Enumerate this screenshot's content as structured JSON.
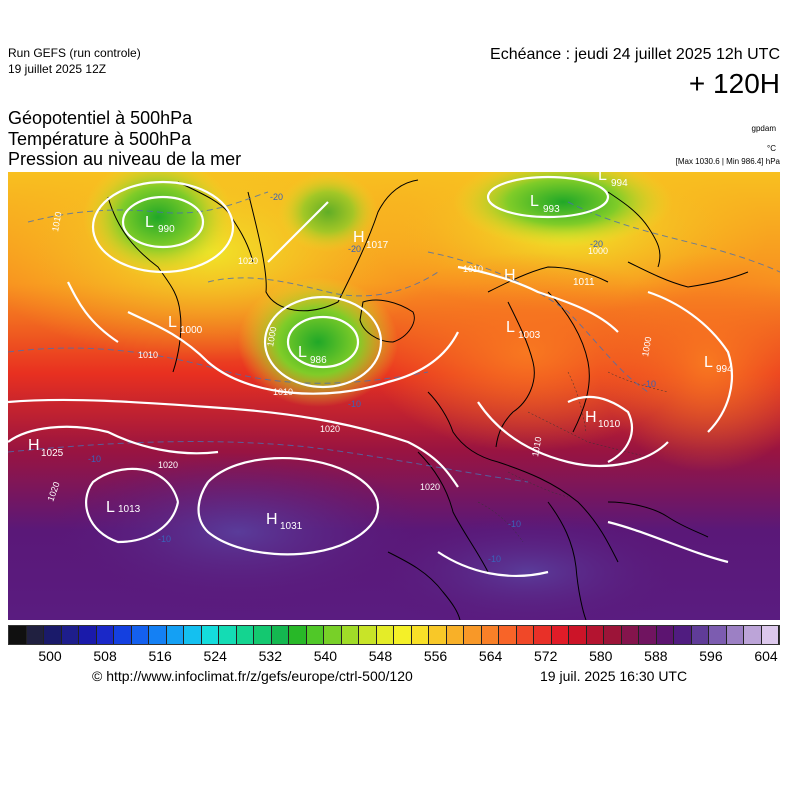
{
  "header": {
    "run_title": "Run GEFS (run controle)",
    "run_date": "19 juillet 2025 12Z",
    "valid_time": "Echéance : jeudi 24 juillet 2025 12h UTC",
    "lead_time": "+ 120H"
  },
  "variables": {
    "v1": "Géopotentiel à 500hPa",
    "v2": "Température à 500hPa",
    "v3": "Pression au niveau de la mer"
  },
  "units": {
    "geopotential": "gpdam",
    "temperature": "°C",
    "max_min": "[Max 1030.6 | Min 986.4] hPa"
  },
  "pressure_centers": [
    {
      "type": "L",
      "value": "990"
    },
    {
      "type": "H",
      "value": "1017"
    },
    {
      "type": "L",
      "value": "993"
    },
    {
      "type": "L",
      "value": "994"
    },
    {
      "type": "L",
      "value": "1000"
    },
    {
      "type": "L",
      "value": "986"
    },
    {
      "type": "H",
      "value": "1011"
    },
    {
      "type": "L",
      "value": "1003"
    },
    {
      "type": "L",
      "value": "994"
    },
    {
      "type": "H",
      "value": "1010"
    },
    {
      "type": "H",
      "value": "1025"
    },
    {
      "type": "L",
      "value": "1013"
    },
    {
      "type": "H",
      "value": "1031"
    }
  ],
  "isobar_labels": [
    "1010",
    "1000",
    "1010",
    "1010",
    "1010",
    "1000",
    "1020",
    "1020",
    "1020",
    "1020",
    "1010",
    "1020",
    "1000"
  ],
  "temp_labels": [
    "-20",
    "-20",
    "-20",
    "-10",
    "-10",
    "-10",
    "-10",
    "-10",
    "-10"
  ],
  "colorbar": {
    "colors": [
      "#101010",
      "#202040",
      "#1a1a6a",
      "#1e1e8c",
      "#1a1aaa",
      "#1a28c8",
      "#1440e0",
      "#1460ee",
      "#1480f4",
      "#14a0f4",
      "#14c0f0",
      "#14dcdc",
      "#14dcb4",
      "#14d490",
      "#14c870",
      "#14b850",
      "#28b828",
      "#50c828",
      "#78d028",
      "#a0dc28",
      "#c8e428",
      "#e4ec28",
      "#f4f028",
      "#f8e028",
      "#f8c828",
      "#f8b028",
      "#f89828",
      "#f88028",
      "#f86428",
      "#f04828",
      "#e83028",
      "#e01c28",
      "#cc1428",
      "#b41430",
      "#9c1438",
      "#84144c",
      "#701460",
      "#5c1470",
      "#501c80",
      "#603c98",
      "#7c5cb0",
      "#9c80c4",
      "#bca4d8",
      "#dcc8ec"
    ],
    "labels": [
      "500",
      "508",
      "516",
      "524",
      "532",
      "540",
      "548",
      "556",
      "564",
      "572",
      "580",
      "588",
      "596",
      "604"
    ]
  },
  "footer": {
    "copyright": "© http://www.infoclimat.fr/z/gefs/europe/ctrl-500/120",
    "generated": "19 juil. 2025 16:30 UTC"
  }
}
